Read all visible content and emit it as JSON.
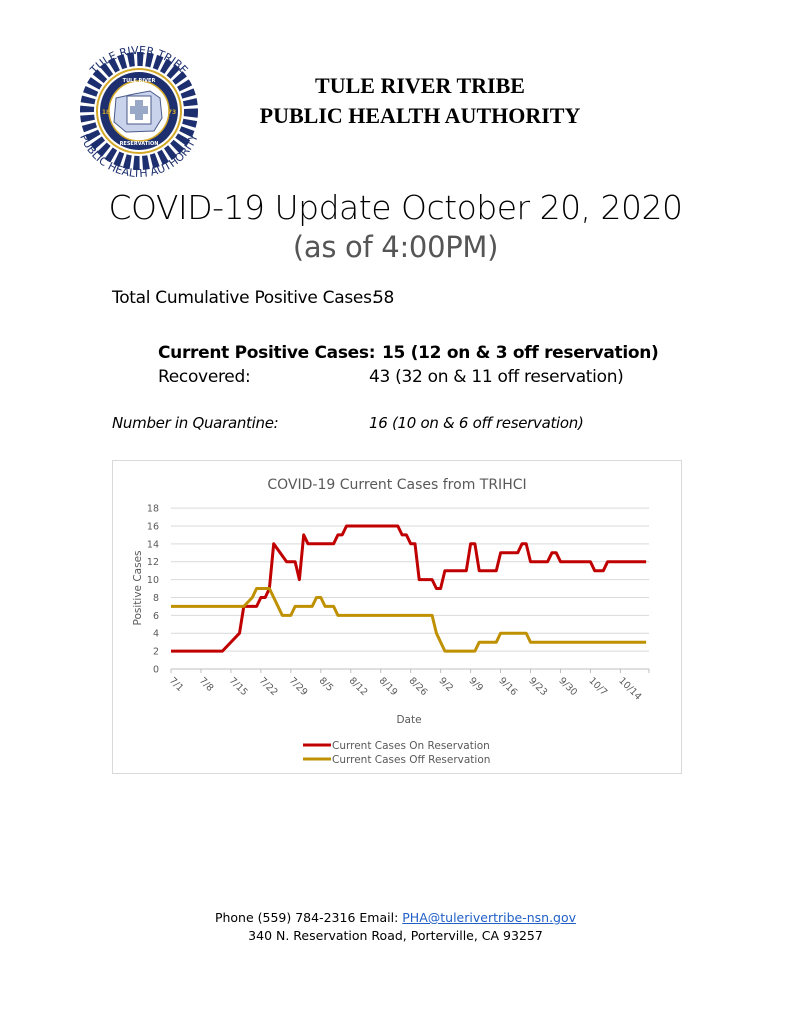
{
  "header": {
    "logo": {
      "top_text": "TULE RIVER TRIBE",
      "bottom_text": "PUBLIC HEALTH AUTHORITY",
      "inner_top": "TULE RIVER",
      "inner_bottom": "RESERVATION",
      "left_year": "18",
      "right_year": "73"
    },
    "org_line1": "TULE RIVER TRIBE",
    "org_line2": "PUBLIC HEALTH AUTHORITY",
    "title": "COVID-19 Update October 20, 2020",
    "subtitle": "(as of 4:00PM)"
  },
  "stats": {
    "total_label": "Total Cumulative Positive Cases:",
    "total_value": "58",
    "current_label": "Current Positive Cases:",
    "current_value": "15 (12 on & 3 off reservation)",
    "recovered_label": "Recovered:",
    "recovered_value": "43 (32 on & 11 off reservation)",
    "quarantine_label": "Number in Quarantine:",
    "quarantine_value": "16 (10 on & 6 off reservation)"
  },
  "colors": {
    "on_reservation": "#c00000",
    "off_reservation": "#bf9000",
    "grid": "#d9d9d9",
    "axis_text": "#595959"
  },
  "chart_data": {
    "type": "line",
    "title": "COVID-19 Current Cases from TRIHCI",
    "xlabel": "Date",
    "ylabel": "Positive Cases",
    "ylim": [
      0,
      18
    ],
    "yticks": [
      0,
      2,
      4,
      6,
      8,
      10,
      12,
      14,
      16,
      18
    ],
    "x_tick_labels": [
      "7/1",
      "7/8",
      "7/15",
      "7/22",
      "7/29",
      "8/5",
      "8/12",
      "8/19",
      "8/26",
      "9/2",
      "9/9",
      "9/16",
      "9/23",
      "9/30",
      "10/7",
      "10/14"
    ],
    "x_unit": "days since 7/1",
    "grid": true,
    "legend_position": "bottom",
    "series": [
      {
        "name": "Current Cases On Reservation",
        "color": "#c00000",
        "points": [
          [
            0,
            2
          ],
          [
            12,
            2
          ],
          [
            16,
            4
          ],
          [
            17,
            7
          ],
          [
            20,
            7
          ],
          [
            21,
            8
          ],
          [
            22,
            8
          ],
          [
            23,
            9
          ],
          [
            24,
            14
          ],
          [
            27,
            12
          ],
          [
            29,
            12
          ],
          [
            30,
            10
          ],
          [
            31,
            15
          ],
          [
            32,
            14
          ],
          [
            38,
            14
          ],
          [
            39,
            15
          ],
          [
            40,
            15
          ],
          [
            41,
            16
          ],
          [
            53,
            16
          ],
          [
            54,
            15
          ],
          [
            55,
            15
          ],
          [
            56,
            14
          ],
          [
            57,
            14
          ],
          [
            58,
            10
          ],
          [
            61,
            10
          ],
          [
            62,
            9
          ],
          [
            63,
            9
          ],
          [
            64,
            11
          ],
          [
            69,
            11
          ],
          [
            70,
            14
          ],
          [
            71,
            14
          ],
          [
            72,
            11
          ],
          [
            76,
            11
          ],
          [
            77,
            13
          ],
          [
            81,
            13
          ],
          [
            82,
            14
          ],
          [
            83,
            14
          ],
          [
            84,
            12
          ],
          [
            88,
            12
          ],
          [
            89,
            13
          ],
          [
            90,
            13
          ],
          [
            91,
            12
          ],
          [
            98,
            12
          ],
          [
            99,
            11
          ],
          [
            101,
            11
          ],
          [
            102,
            12
          ],
          [
            111,
            12
          ]
        ]
      },
      {
        "name": "Current Cases Off Reservation",
        "color": "#bf9000",
        "points": [
          [
            0,
            7
          ],
          [
            17,
            7
          ],
          [
            19,
            8
          ],
          [
            20,
            9
          ],
          [
            23,
            9
          ],
          [
            26,
            6
          ],
          [
            28,
            6
          ],
          [
            29,
            7
          ],
          [
            33,
            7
          ],
          [
            34,
            8
          ],
          [
            35,
            8
          ],
          [
            36,
            7
          ],
          [
            38,
            7
          ],
          [
            39,
            6
          ],
          [
            61,
            6
          ],
          [
            62,
            4
          ],
          [
            64,
            2
          ],
          [
            71,
            2
          ],
          [
            72,
            3
          ],
          [
            76,
            3
          ],
          [
            77,
            4
          ],
          [
            83,
            4
          ],
          [
            84,
            3
          ],
          [
            111,
            3
          ]
        ]
      }
    ]
  },
  "footer": {
    "phone_email_prefix": "Phone (559) 784-2316 Email: ",
    "email": "PHA@tulerivertribe-nsn.gov",
    "address": "340 N. Reservation Road, Porterville, CA 93257"
  }
}
